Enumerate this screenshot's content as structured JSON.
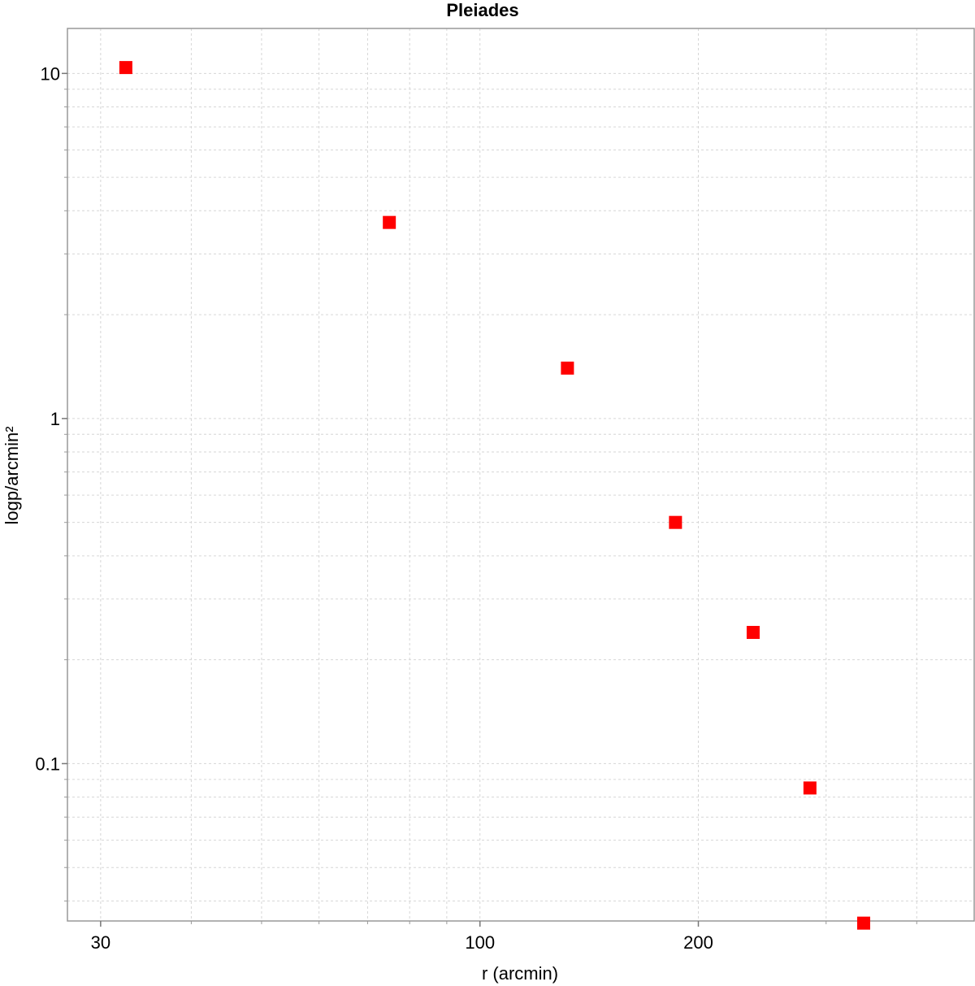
{
  "chart_data": {
    "type": "scatter",
    "title": "Pleiades",
    "xlabel": "r (arcmin)",
    "ylabel": "logp/arcmin²",
    "x_scale": "log",
    "y_scale": "log",
    "xlim": [
      27,
      480
    ],
    "ylim": [
      0.035,
      13.5
    ],
    "x_ticks": [
      30,
      100,
      200
    ],
    "x_tick_labels": [
      "30",
      "100",
      "200"
    ],
    "y_ticks": [
      0.1,
      1,
      10
    ],
    "y_tick_labels": [
      "0.1",
      "1",
      "10"
    ],
    "grid": true,
    "legend": "none",
    "marker": "square",
    "color": "#ff0000",
    "points": [
      {
        "x": 32.5,
        "y": 10.4
      },
      {
        "x": 75,
        "y": 3.7
      },
      {
        "x": 132,
        "y": 1.4
      },
      {
        "x": 186,
        "y": 0.5
      },
      {
        "x": 238,
        "y": 0.24
      },
      {
        "x": 285,
        "y": 0.085
      },
      {
        "x": 338,
        "y": 0.0345
      }
    ]
  }
}
